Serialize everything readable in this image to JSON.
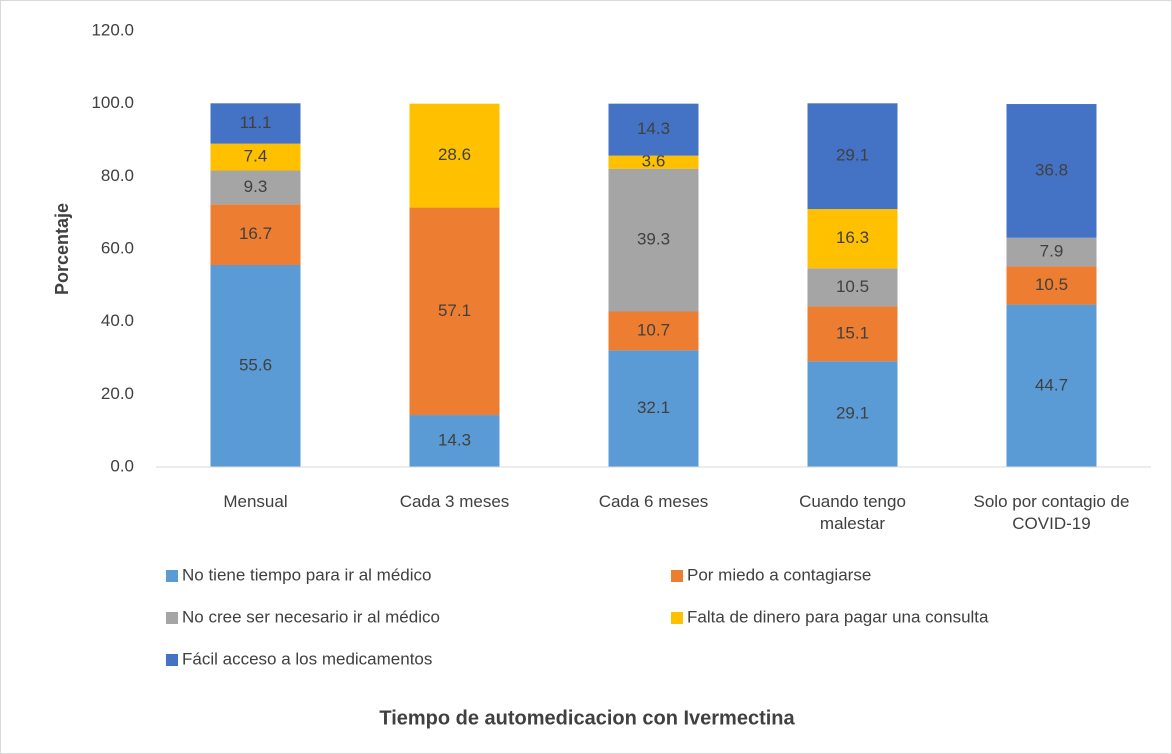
{
  "chart_data": {
    "type": "stacked_bar",
    "x_label": "Tiempo de automedicacion con Ivermectina",
    "y_label": "Porcentaje",
    "categories": [
      "Mensual",
      "Cada 3 meses",
      "Cada 6 meses",
      "Cuando tengo malestar",
      "Solo por contagio de COVID-19"
    ],
    "series": [
      {
        "name": "No tiene tiempo para ir al médico",
        "color": "#5b9bd5",
        "values": [
          55.6,
          14.3,
          32.1,
          29.1,
          44.7
        ]
      },
      {
        "name": "Por miedo a contagiarse",
        "color": "#ed7d31",
        "values": [
          16.7,
          57.1,
          10.7,
          15.1,
          10.5
        ]
      },
      {
        "name": "No cree ser necesario ir al médico",
        "color": "#a5a5a5",
        "values": [
          9.3,
          null,
          39.3,
          10.5,
          7.9
        ]
      },
      {
        "name": "Falta de dinero para pagar una consulta",
        "color": "#ffc000",
        "values": [
          7.4,
          28.6,
          3.6,
          16.3,
          null
        ]
      },
      {
        "name": "Fácil acceso a los medicamentos",
        "color": "#4472c4",
        "values": [
          11.1,
          null,
          14.3,
          29.1,
          36.8
        ]
      }
    ],
    "ylim": [
      0,
      120
    ],
    "yticks": [
      {
        "value": 0,
        "label": "0.0"
      },
      {
        "value": 20,
        "label": "20.0"
      },
      {
        "value": 40,
        "label": "40.0"
      },
      {
        "value": 60,
        "label": "60.0"
      },
      {
        "value": 80,
        "label": "80.0"
      },
      {
        "value": 100,
        "label": "100.0"
      },
      {
        "value": 120,
        "label": "120.0"
      }
    ],
    "grid": false,
    "legend": "bottom"
  }
}
